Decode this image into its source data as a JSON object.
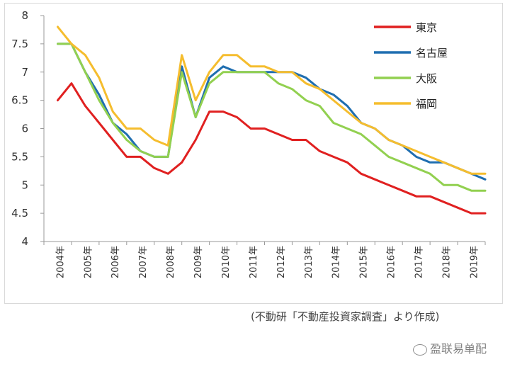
{
  "chart_data": {
    "type": "line",
    "ylim": [
      4,
      8
    ],
    "y_ticks": [
      "4",
      "4.5",
      "5",
      "5.5",
      "6",
      "6.5",
      "7",
      "7.5",
      "8"
    ],
    "x_tick_labels": [
      "2004年",
      "2005年",
      "2006年",
      "2007年",
      "2008年",
      "2009年",
      "2010年",
      "2011年",
      "2012年",
      "2013年",
      "2014年",
      "2015年",
      "2016年",
      "2017年",
      "2018年",
      "2019年"
    ],
    "points_per_year": 2,
    "start_offset": 1,
    "legend_position": "top-right",
    "series": [
      {
        "name": "東京",
        "color": "#e02020",
        "values": [
          6.5,
          6.8,
          6.4,
          6.1,
          5.8,
          5.5,
          5.5,
          5.3,
          5.2,
          5.4,
          5.8,
          6.3,
          6.3,
          6.2,
          6.0,
          6.0,
          5.9,
          5.8,
          5.8,
          5.6,
          5.5,
          5.4,
          5.2,
          5.1,
          5.0,
          4.9,
          4.8,
          4.8,
          4.7,
          4.6,
          4.5,
          4.5
        ]
      },
      {
        "name": "名古屋",
        "color": "#1f6eb0",
        "values": [
          7.5,
          7.5,
          7.0,
          6.6,
          6.1,
          5.9,
          5.6,
          5.5,
          5.5,
          7.1,
          6.2,
          6.9,
          7.1,
          7.0,
          7.0,
          7.0,
          7.0,
          7.0,
          6.9,
          6.7,
          6.6,
          6.4,
          6.1,
          6.0,
          5.8,
          5.7,
          5.5,
          5.4,
          5.4,
          5.3,
          5.2,
          5.1
        ]
      },
      {
        "name": "大阪",
        "color": "#92d050",
        "values": [
          7.5,
          7.5,
          7.0,
          6.5,
          6.1,
          5.8,
          5.6,
          5.5,
          5.5,
          7.0,
          6.2,
          6.8,
          7.0,
          7.0,
          7.0,
          7.0,
          6.8,
          6.7,
          6.5,
          6.4,
          6.1,
          6.0,
          5.9,
          5.7,
          5.5,
          5.4,
          5.3,
          5.2,
          5.0,
          5.0,
          4.9,
          4.9
        ]
      },
      {
        "name": "福岡",
        "color": "#f5bd2e",
        "values": [
          7.8,
          7.5,
          7.3,
          6.9,
          6.3,
          6.0,
          6.0,
          5.8,
          5.7,
          7.3,
          6.5,
          7.0,
          7.3,
          7.3,
          7.1,
          7.1,
          7.0,
          7.0,
          6.8,
          6.7,
          6.5,
          6.3,
          6.1,
          6.0,
          5.8,
          5.7,
          5.6,
          5.5,
          5.4,
          5.3,
          5.2,
          5.2
        ]
      }
    ]
  },
  "source_note": "(不動研「不動産投資家調査」より作成)",
  "watermark_text": "盈联易单配"
}
